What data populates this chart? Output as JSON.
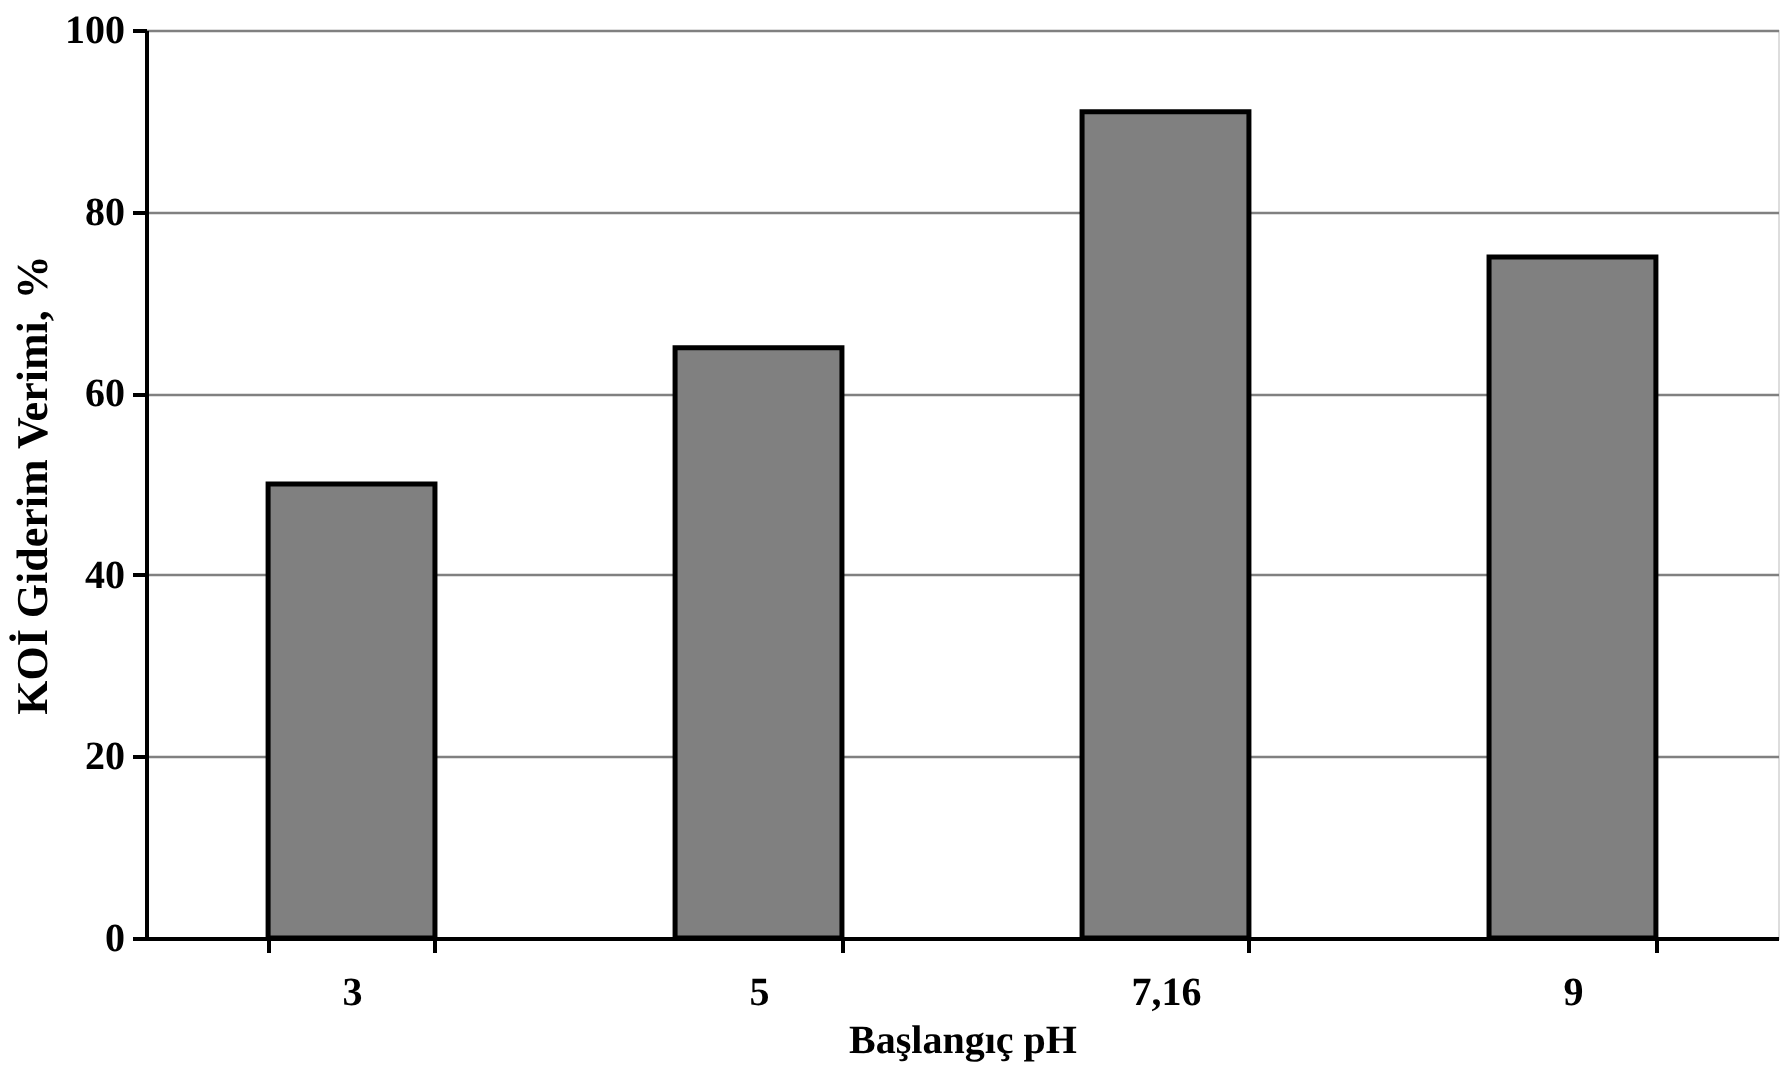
{
  "chart_data": {
    "type": "bar",
    "xlabel": "Başlangıç pH",
    "ylabel": "KOİ Giderim  Verimi, %",
    "categories": [
      "3",
      "5",
      "7,16",
      "9"
    ],
    "values": [
      50,
      65,
      91,
      75
    ],
    "color": "#808080",
    "ylim": [
      0,
      100
    ],
    "yticks": [
      0,
      20,
      40,
      60,
      80,
      100
    ],
    "grid": "y"
  }
}
